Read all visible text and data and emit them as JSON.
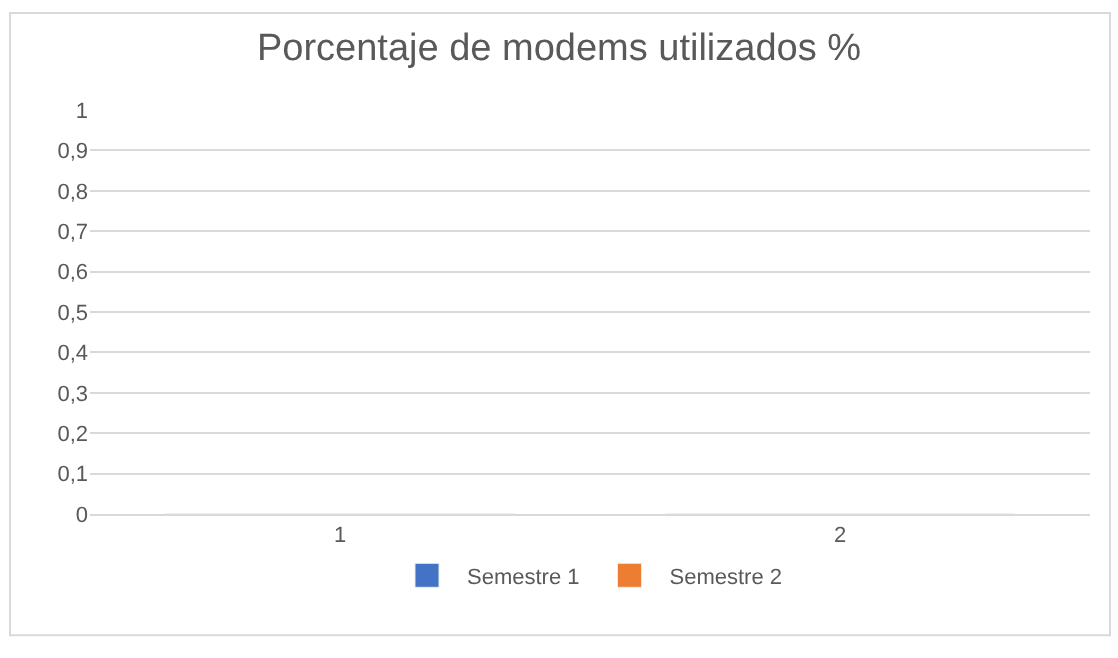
{
  "chart_data": {
    "type": "bar",
    "title": "Porcentaje de modems utilizados %",
    "categories": [
      "1",
      "2"
    ],
    "series": [
      {
        "name": "Semestre 1",
        "color": "#4472c4",
        "values": [
          0,
          0
        ]
      },
      {
        "name": "Semestre 2",
        "color": "#ed7d31",
        "values": [
          0,
          0
        ]
      }
    ],
    "ylim": [
      0,
      1
    ],
    "yticks": [
      0,
      {
        "value": 0.1,
        "label": "0,1"
      },
      {
        "value": 0.2,
        "label": "0,2"
      },
      {
        "value": 0.3,
        "label": "0,3"
      },
      {
        "value": 0.4,
        "label": "0,4"
      },
      {
        "value": 0.5,
        "label": "0,5"
      },
      {
        "value": 0.6,
        "label": "0,6"
      },
      {
        "value": 0.7,
        "label": "0,7"
      },
      {
        "value": 0.8,
        "label": "0,8"
      },
      {
        "value": 0.9,
        "label": "0,9"
      },
      1
    ],
    "grid": "y",
    "legend": "bottom"
  }
}
